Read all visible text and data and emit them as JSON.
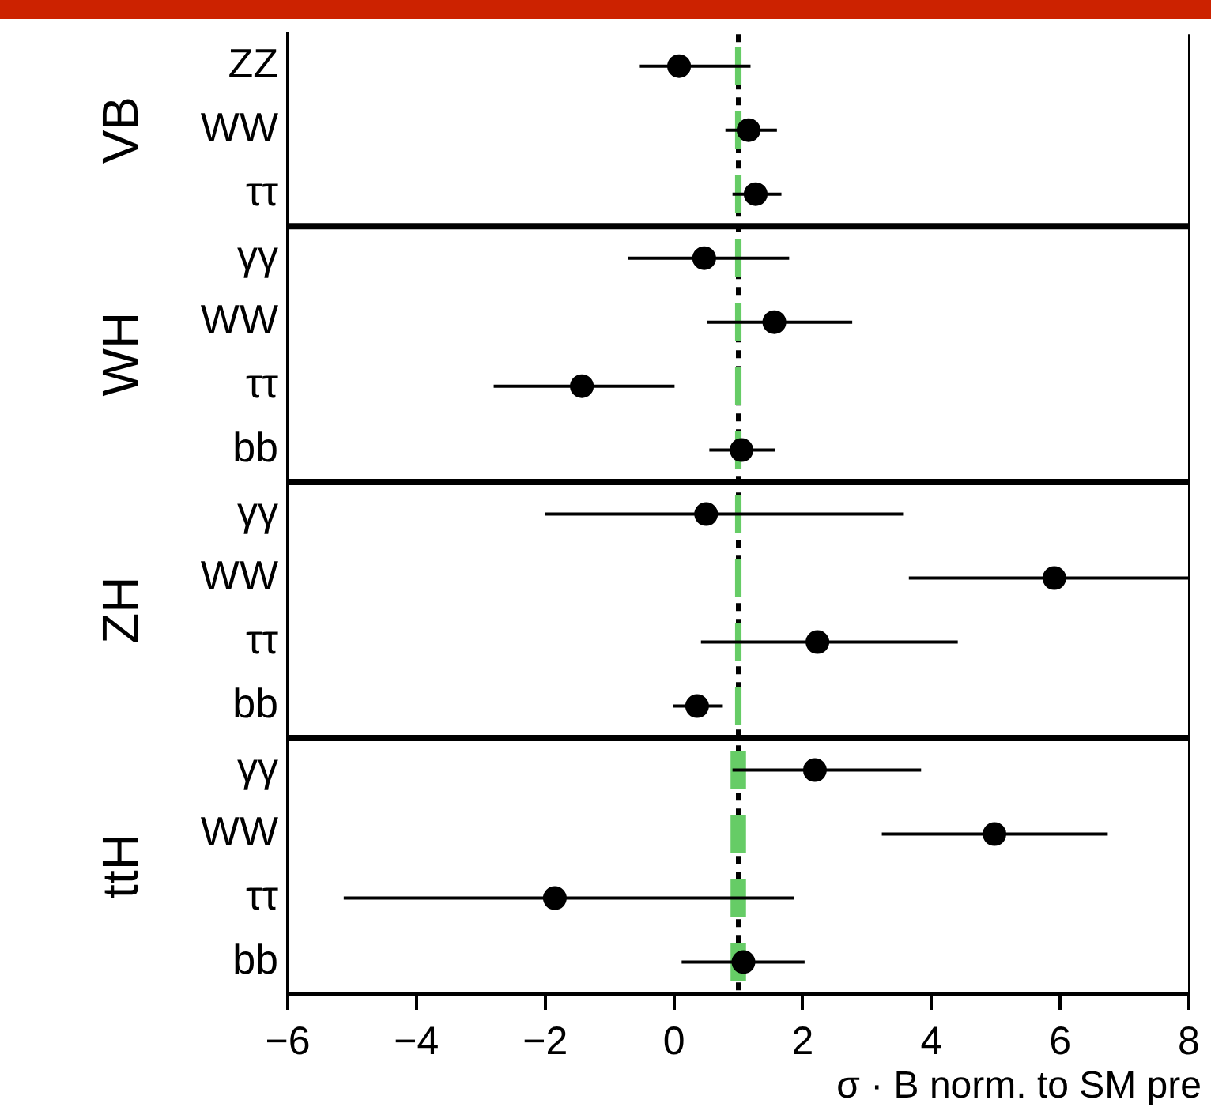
{
  "chart_data": {
    "type": "scatter",
    "orientation": "horizontal",
    "xlabel": "σ · B norm. to SM pre",
    "categories": [
      "ZZ",
      "WW",
      "ττ",
      "γγ",
      "WW",
      "ττ",
      "bb",
      "γγ",
      "WW",
      "ττ",
      "bb",
      "γγ",
      "WW",
      "ττ",
      "bb"
    ],
    "xlim": [
      -6,
      8
    ],
    "xticks": [
      -6,
      -4,
      -2,
      0,
      2,
      4,
      6,
      8
    ],
    "series": [
      {
        "type": "bar",
        "color": "#66cc66",
        "base": [
          0.95,
          0.95,
          0.95,
          0.95,
          0.95,
          0.95,
          0.95,
          0.95,
          0.95,
          0.95,
          0.95,
          0.88,
          0.88,
          0.88,
          0.88
        ],
        "values": [
          0.1,
          0.1,
          0.1,
          0.1,
          0.1,
          0.1,
          0.1,
          0.1,
          0.1,
          0.1,
          0.1,
          0.24,
          0.24,
          0.24,
          0.24
        ]
      },
      {
        "color": "#000000",
        "values": [
          0.08,
          1.16,
          1.27,
          0.47,
          1.56,
          -1.43,
          1.05,
          0.5,
          5.91,
          2.23,
          0.36,
          2.19,
          4.98,
          -1.85,
          1.08
        ],
        "errors": [
          [
            -0.53,
            1.19
          ],
          [
            0.8,
            1.6
          ],
          [
            0.91,
            1.67
          ],
          [
            -0.71,
            1.79
          ],
          [
            0.52,
            2.77
          ],
          [
            -2.8,
            0.01
          ],
          [
            0.55,
            1.57
          ],
          [
            -2.0,
            3.56
          ],
          [
            3.65,
            8
          ],
          [
            0.42,
            4.41
          ],
          [
            -0.01,
            0.76
          ],
          [
            0.91,
            3.84
          ],
          [
            3.23,
            6.74
          ],
          [
            -5.13,
            1.87
          ],
          [
            0.12,
            2.03
          ]
        ]
      }
    ],
    "ref_lines": [
      {
        "axis": "x",
        "value": 1,
        "color": "#000000",
        "line_style": "dashed"
      }
    ],
    "annotations": [
      "VB",
      "WH",
      "ZH",
      "ttH"
    ],
    "marker": "circle",
    "grid": false,
    "legend": false
  }
}
